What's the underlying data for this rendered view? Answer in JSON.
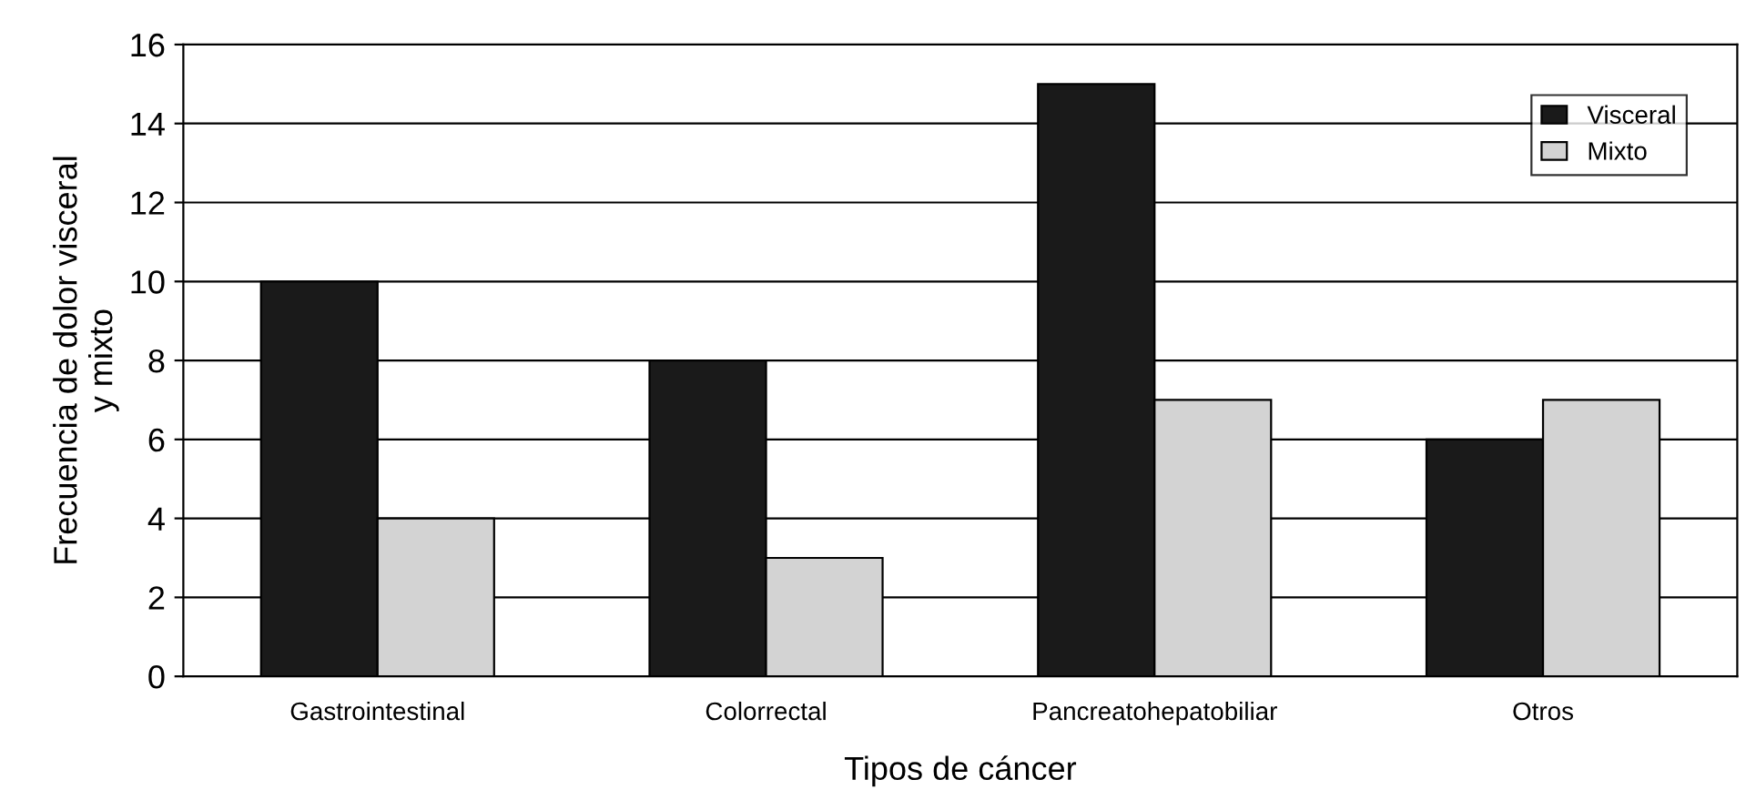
{
  "chart_data": {
    "type": "bar",
    "xlabel": "Tipos de cáncer",
    "ylabel": "Frecuencia de dolor visceral\ny mixto",
    "categories": [
      "Gastrointestinal",
      "Colorrectal",
      "Pancreatohepatobiliar",
      "Otros"
    ],
    "series": [
      {
        "name": "Visceral",
        "color": "#1a1a1a",
        "values": [
          10,
          8,
          15,
          6
        ]
      },
      {
        "name": "Mixto",
        "color": "#d3d3d3",
        "values": [
          4,
          3,
          7,
          7
        ]
      }
    ],
    "ylim": [
      0,
      16
    ],
    "yticks": [
      0,
      2,
      4,
      6,
      8,
      10,
      12,
      14,
      16
    ],
    "grid": "y",
    "legend": "top right"
  }
}
